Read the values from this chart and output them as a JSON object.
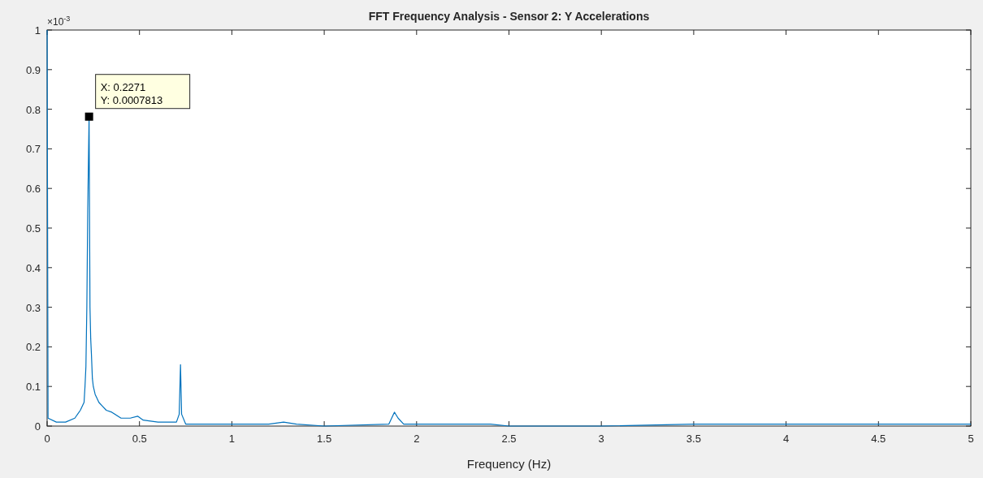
{
  "chart_data": {
    "type": "line",
    "title": "FFT Frequency Analysis - Sensor 2: Y Accelerations",
    "xlabel": "Frequency (Hz)",
    "x": [
      0,
      0.005,
      0.05,
      0.1,
      0.15,
      0.18,
      0.2,
      0.205,
      0.21,
      0.215,
      0.22,
      0.2271,
      0.232,
      0.236,
      0.24,
      0.245,
      0.25,
      0.26,
      0.27,
      0.28,
      0.3,
      0.32,
      0.35,
      0.4,
      0.45,
      0.49,
      0.52,
      0.6,
      0.7,
      0.715,
      0.722,
      0.728,
      0.75,
      0.9,
      1.0,
      1.2,
      1.28,
      1.35,
      1.5,
      1.85,
      1.88,
      1.9,
      1.93,
      2.2,
      2.4,
      2.5,
      3.0,
      3.5,
      4.0,
      4.4,
      5.0
    ],
    "series": [
      {
        "color": "#0072bd",
        "values": [
          1,
          0.02,
          0.01,
          0.01,
          0.02,
          0.04,
          0.06,
          0.1,
          0.15,
          0.3,
          0.55,
          0.78,
          0.3,
          0.22,
          0.18,
          0.12,
          0.1,
          0.08,
          0.07,
          0.06,
          0.05,
          0.04,
          0.035,
          0.02,
          0.02,
          0.025,
          0.015,
          0.01,
          0.01,
          0.03,
          0.155,
          0.03,
          0.005,
          0.005,
          0.005,
          0.005,
          0.01,
          0.005,
          0,
          0.005,
          0.035,
          0.02,
          0.005,
          0.005,
          0.005,
          0,
          0,
          0.005,
          0.005,
          0.005,
          0.005
        ]
      }
    ],
    "xlim": [
      0,
      5
    ],
    "xticks": [
      0,
      0.5,
      1,
      1.5,
      2,
      2.5,
      3,
      3.5,
      4,
      4.5,
      5
    ],
    "ylim": [
      0,
      1
    ],
    "yticks": [
      0,
      0.1,
      0.2,
      0.3,
      0.4,
      0.5,
      0.6,
      0.7,
      0.8,
      0.9,
      1
    ],
    "annotations": [
      "×10$^{-3}$",
      {
        "text": "X: 0.2271\nY: 0.0007813",
        "x": 0.2271,
        "y": 0.7813
      }
    ],
    "grid": false
  }
}
